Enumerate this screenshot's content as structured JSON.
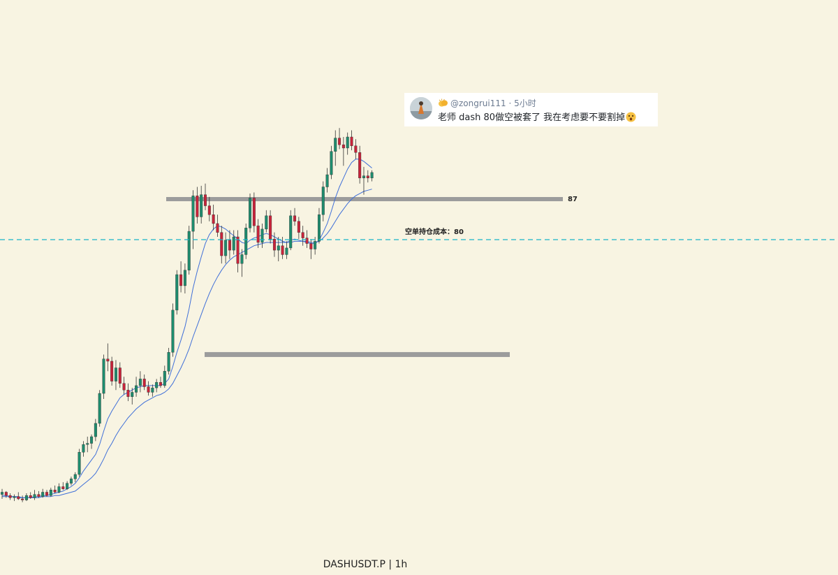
{
  "comment": {
    "username": "@zongrui111 · 5小时",
    "text": "老师 dash 80做空被套了 我在考虑要不要割掉",
    "icons": [
      "clapping-hands-icon",
      "astonished-face-icon",
      "avatar"
    ]
  },
  "footer": {
    "symbol": "DASHUSDT.P  |  1h"
  },
  "colors": {
    "background": "#f8f4e2",
    "up": "#1e8c6e",
    "down": "#c8233a",
    "ma": "#3f6fd8",
    "dashed": "#19b5c9",
    "zone": "#9c9c9c"
  },
  "chart_data": {
    "type": "candlestick",
    "symbol": "DASHUSDT.P",
    "interval": "1h",
    "title": "",
    "xlabel": "",
    "ylabel": "",
    "ylim": [
      60,
      93
    ],
    "candles": [
      [
        60.4,
        60.9,
        60.0,
        60.6
      ],
      [
        60.6,
        60.7,
        60.1,
        60.3
      ],
      [
        60.3,
        60.5,
        59.9,
        60.1
      ],
      [
        60.1,
        60.4,
        59.8,
        60.2
      ],
      [
        60.2,
        60.6,
        59.9,
        60.0
      ],
      [
        60.0,
        60.3,
        59.7,
        59.9
      ],
      [
        59.9,
        60.5,
        59.8,
        60.3
      ],
      [
        60.3,
        60.6,
        60.0,
        60.1
      ],
      [
        60.1,
        60.8,
        59.9,
        60.4
      ],
      [
        60.4,
        60.7,
        60.1,
        60.2
      ],
      [
        60.2,
        60.9,
        60.1,
        60.6
      ],
      [
        60.6,
        60.8,
        60.2,
        60.3
      ],
      [
        60.3,
        61.0,
        60.2,
        60.8
      ],
      [
        60.8,
        61.2,
        60.5,
        60.6
      ],
      [
        60.6,
        61.4,
        60.5,
        61.1
      ],
      [
        61.1,
        61.5,
        60.8,
        60.9
      ],
      [
        60.9,
        61.6,
        60.8,
        61.4
      ],
      [
        61.4,
        62.0,
        61.2,
        61.8
      ],
      [
        61.8,
        62.4,
        61.5,
        62.2
      ],
      [
        62.2,
        64.5,
        62.0,
        64.2
      ],
      [
        64.2,
        65.2,
        63.8,
        64.9
      ],
      [
        64.9,
        65.6,
        64.2,
        65.0
      ],
      [
        65.0,
        65.8,
        64.5,
        65.6
      ],
      [
        65.6,
        67.2,
        65.2,
        66.8
      ],
      [
        66.8,
        69.8,
        66.5,
        69.5
      ],
      [
        69.5,
        73.0,
        69.0,
        72.6
      ],
      [
        72.6,
        74.0,
        71.5,
        72.4
      ],
      [
        72.4,
        72.8,
        70.2,
        70.6
      ],
      [
        70.6,
        72.5,
        69.8,
        71.8
      ],
      [
        71.8,
        72.3,
        70.0,
        70.4
      ],
      [
        70.4,
        71.0,
        69.4,
        69.8
      ],
      [
        69.8,
        70.4,
        68.8,
        69.2
      ],
      [
        69.2,
        70.0,
        68.5,
        69.6
      ],
      [
        69.6,
        71.0,
        69.2,
        70.2
      ],
      [
        70.2,
        71.5,
        69.6,
        70.8
      ],
      [
        70.8,
        71.2,
        69.8,
        70.1
      ],
      [
        70.1,
        70.6,
        69.3,
        69.6
      ],
      [
        69.6,
        70.3,
        69.2,
        70.0
      ],
      [
        70.0,
        70.8,
        69.6,
        70.5
      ],
      [
        70.5,
        71.0,
        70.0,
        70.2
      ],
      [
        70.2,
        72.0,
        70.0,
        71.5
      ],
      [
        71.5,
        73.6,
        71.2,
        73.2
      ],
      [
        73.2,
        77.6,
        72.8,
        77.0
      ],
      [
        77.0,
        80.6,
        76.6,
        80.2
      ],
      [
        80.2,
        81.4,
        78.6,
        79.2
      ],
      [
        79.2,
        81.2,
        78.5,
        80.6
      ],
      [
        80.6,
        84.6,
        80.2,
        84.1
      ],
      [
        84.1,
        87.8,
        82.5,
        87.3
      ],
      [
        87.3,
        88.1,
        84.8,
        85.4
      ],
      [
        85.4,
        88.2,
        84.8,
        87.4
      ],
      [
        87.4,
        88.4,
        86.0,
        86.4
      ],
      [
        86.4,
        87.2,
        85.0,
        85.6
      ],
      [
        85.6,
        86.5,
        84.2,
        84.8
      ],
      [
        84.8,
        85.6,
        83.6,
        84.0
      ],
      [
        84.0,
        84.6,
        81.2,
        81.9
      ],
      [
        81.9,
        84.0,
        81.2,
        83.3
      ],
      [
        83.3,
        84.2,
        81.6,
        82.4
      ],
      [
        82.4,
        84.2,
        82.0,
        83.6
      ],
      [
        83.6,
        84.2,
        80.4,
        81.2
      ],
      [
        81.2,
        82.5,
        80.0,
        82.0
      ],
      [
        82.0,
        84.8,
        81.6,
        84.4
      ],
      [
        84.4,
        87.5,
        84.0,
        87.1
      ],
      [
        87.1,
        87.6,
        84.0,
        84.6
      ],
      [
        84.6,
        85.2,
        82.6,
        83.1
      ],
      [
        83.1,
        84.8,
        82.6,
        84.3
      ],
      [
        84.3,
        86.0,
        84.0,
        85.5
      ],
      [
        85.5,
        86.0,
        83.0,
        83.4
      ],
      [
        83.4,
        84.0,
        81.8,
        82.4
      ],
      [
        82.4,
        83.6,
        81.4,
        82.8
      ],
      [
        82.8,
        83.6,
        81.6,
        82.0
      ],
      [
        82.0,
        83.2,
        81.6,
        82.6
      ],
      [
        82.6,
        86.0,
        82.4,
        85.5
      ],
      [
        85.5,
        86.2,
        84.6,
        85.0
      ],
      [
        85.0,
        85.4,
        83.4,
        84.0
      ],
      [
        84.0,
        84.6,
        82.8,
        83.5
      ],
      [
        83.5,
        84.2,
        82.6,
        83.0
      ],
      [
        83.0,
        83.4,
        81.6,
        82.5
      ],
      [
        82.5,
        83.6,
        82.0,
        83.2
      ],
      [
        83.2,
        86.2,
        83.0,
        85.6
      ],
      [
        85.6,
        88.6,
        85.0,
        88.1
      ],
      [
        88.1,
        89.8,
        87.6,
        89.2
      ],
      [
        89.2,
        91.8,
        88.8,
        91.3
      ],
      [
        91.3,
        93.2,
        90.0,
        92.5
      ],
      [
        92.5,
        93.4,
        91.5,
        91.9
      ],
      [
        91.9,
        92.6,
        90.0,
        91.6
      ],
      [
        91.6,
        93.0,
        91.0,
        92.6
      ],
      [
        92.6,
        93.2,
        91.4,
        91.8
      ],
      [
        91.8,
        92.4,
        90.6,
        91.2
      ],
      [
        91.2,
        91.8,
        88.4,
        88.9
      ],
      [
        88.9,
        89.9,
        87.4,
        89.1
      ],
      [
        89.1,
        89.6,
        88.5,
        88.9
      ],
      [
        88.9,
        89.6,
        88.6,
        89.4
      ]
    ],
    "ma_fast": [
      60.3,
      60.3,
      60.2,
      60.2,
      60.2,
      60.1,
      60.1,
      60.1,
      60.2,
      60.2,
      60.3,
      60.3,
      60.4,
      60.5,
      60.6,
      60.7,
      60.9,
      61.1,
      61.4,
      61.9,
      62.5,
      63.0,
      63.5,
      64.0,
      64.9,
      66.1,
      67.2,
      67.9,
      68.5,
      69.1,
      69.4,
      69.6,
      69.8,
      70.0,
      70.1,
      70.2,
      70.2,
      70.2,
      70.2,
      70.2,
      70.4,
      70.8,
      71.9,
      73.2,
      74.3,
      75.5,
      77.1,
      79.0,
      80.5,
      81.8,
      83.0,
      83.8,
      84.3,
      84.6,
      84.5,
      84.3,
      84.0,
      83.7,
      83.4,
      83.1,
      83.0,
      83.3,
      83.5,
      83.6,
      83.8,
      83.9,
      83.8,
      83.6,
      83.4,
      83.2,
      83.1,
      83.3,
      83.4,
      83.3,
      83.2,
      83.1,
      83.0,
      83.0,
      83.3,
      84.0,
      84.8,
      85.9,
      87.1,
      88.1,
      88.9,
      89.7,
      90.3,
      90.6,
      90.6,
      90.4,
      90.1,
      89.8
    ],
    "ma_slow": [
      60.2,
      60.2,
      60.2,
      60.2,
      60.1,
      60.1,
      60.1,
      60.1,
      60.1,
      60.1,
      60.2,
      60.2,
      60.2,
      60.3,
      60.3,
      60.4,
      60.5,
      60.6,
      60.7,
      61.0,
      61.3,
      61.6,
      61.9,
      62.3,
      62.9,
      63.6,
      64.4,
      65.0,
      65.7,
      66.3,
      66.8,
      67.3,
      67.7,
      68.1,
      68.4,
      68.7,
      68.9,
      69.1,
      69.3,
      69.4,
      69.6,
      69.9,
      70.4,
      71.1,
      71.8,
      72.6,
      73.5,
      74.6,
      75.6,
      76.6,
      77.6,
      78.5,
      79.3,
      80.0,
      80.6,
      81.1,
      81.5,
      81.8,
      82.0,
      82.2,
      82.4,
      82.6,
      82.8,
      82.9,
      83.0,
      83.1,
      83.1,
      83.1,
      83.1,
      83.1,
      83.1,
      83.1,
      83.2,
      83.2,
      83.2,
      83.2,
      83.1,
      83.1,
      83.2,
      83.5,
      83.9,
      84.4,
      85.0,
      85.6,
      86.1,
      86.6,
      87.0,
      87.3,
      87.5,
      87.7,
      87.8,
      87.9
    ]
  },
  "annotations": {
    "resistance": {
      "price": 87,
      "label": "87"
    },
    "support": {
      "price": 73
    },
    "cost_line": {
      "price": 80,
      "label": "空单持仓成本：80"
    }
  }
}
